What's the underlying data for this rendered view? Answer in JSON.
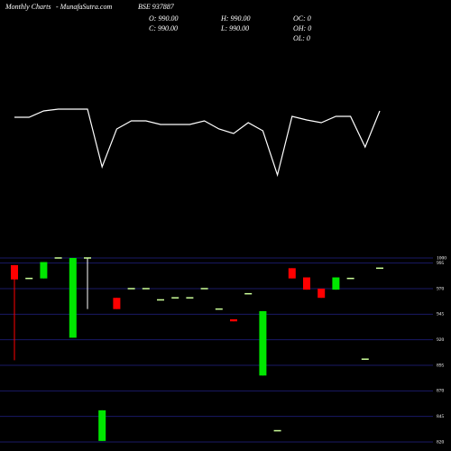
{
  "chart_data": {
    "type": "candlestick",
    "header": {
      "left": "Monthly Charts",
      "site": "- MunafaSutra.com",
      "symbol": "BSE 937887",
      "o": "O: 990.00",
      "h": "H: 990.00",
      "oc": "OC: 0",
      "c": "C: 990.00",
      "l": "L: 990.00",
      "oh": "OH: 0",
      "ol": "OL: 0"
    },
    "open": [
      993,
      980,
      980,
      1000,
      922,
      1000,
      821,
      961,
      970,
      970,
      959,
      961,
      961,
      970,
      950,
      940,
      965,
      885,
      831,
      990,
      981,
      970,
      969,
      980,
      901,
      990
    ],
    "high": [
      993,
      980,
      996,
      1000,
      1000,
      1000,
      851,
      961,
      970,
      970,
      959,
      961,
      961,
      970,
      950,
      940,
      965,
      948,
      831,
      990,
      981,
      970,
      981,
      980,
      901,
      990
    ],
    "low": [
      900,
      980,
      980,
      1000,
      922,
      950,
      821,
      950,
      970,
      970,
      959,
      961,
      961,
      970,
      950,
      938,
      965,
      885,
      831,
      980,
      969,
      961,
      969,
      980,
      901,
      990
    ],
    "close": [
      979,
      980,
      996,
      1000,
      1000,
      1000,
      851,
      950,
      970,
      970,
      959,
      961,
      961,
      970,
      950,
      938,
      965,
      948,
      831,
      980,
      969,
      961,
      981,
      980,
      901,
      990
    ],
    "indicator": [
      70,
      70,
      77,
      79,
      79,
      79,
      15,
      57,
      66,
      66,
      62,
      62,
      62,
      66,
      57,
      52,
      64,
      55,
      6,
      71,
      67,
      64,
      71,
      71,
      37,
      77
    ],
    "up_color": "#00e600",
    "down_color": "#ff0000",
    "flat_color": "#ccff99",
    "line_color": "#ffffff",
    "grid_color": "#1a1a66",
    "ylim": [
      820,
      1000
    ],
    "yticks": [
      1000,
      995,
      970,
      945,
      920,
      895,
      870,
      845,
      820
    ],
    "grid": true
  }
}
